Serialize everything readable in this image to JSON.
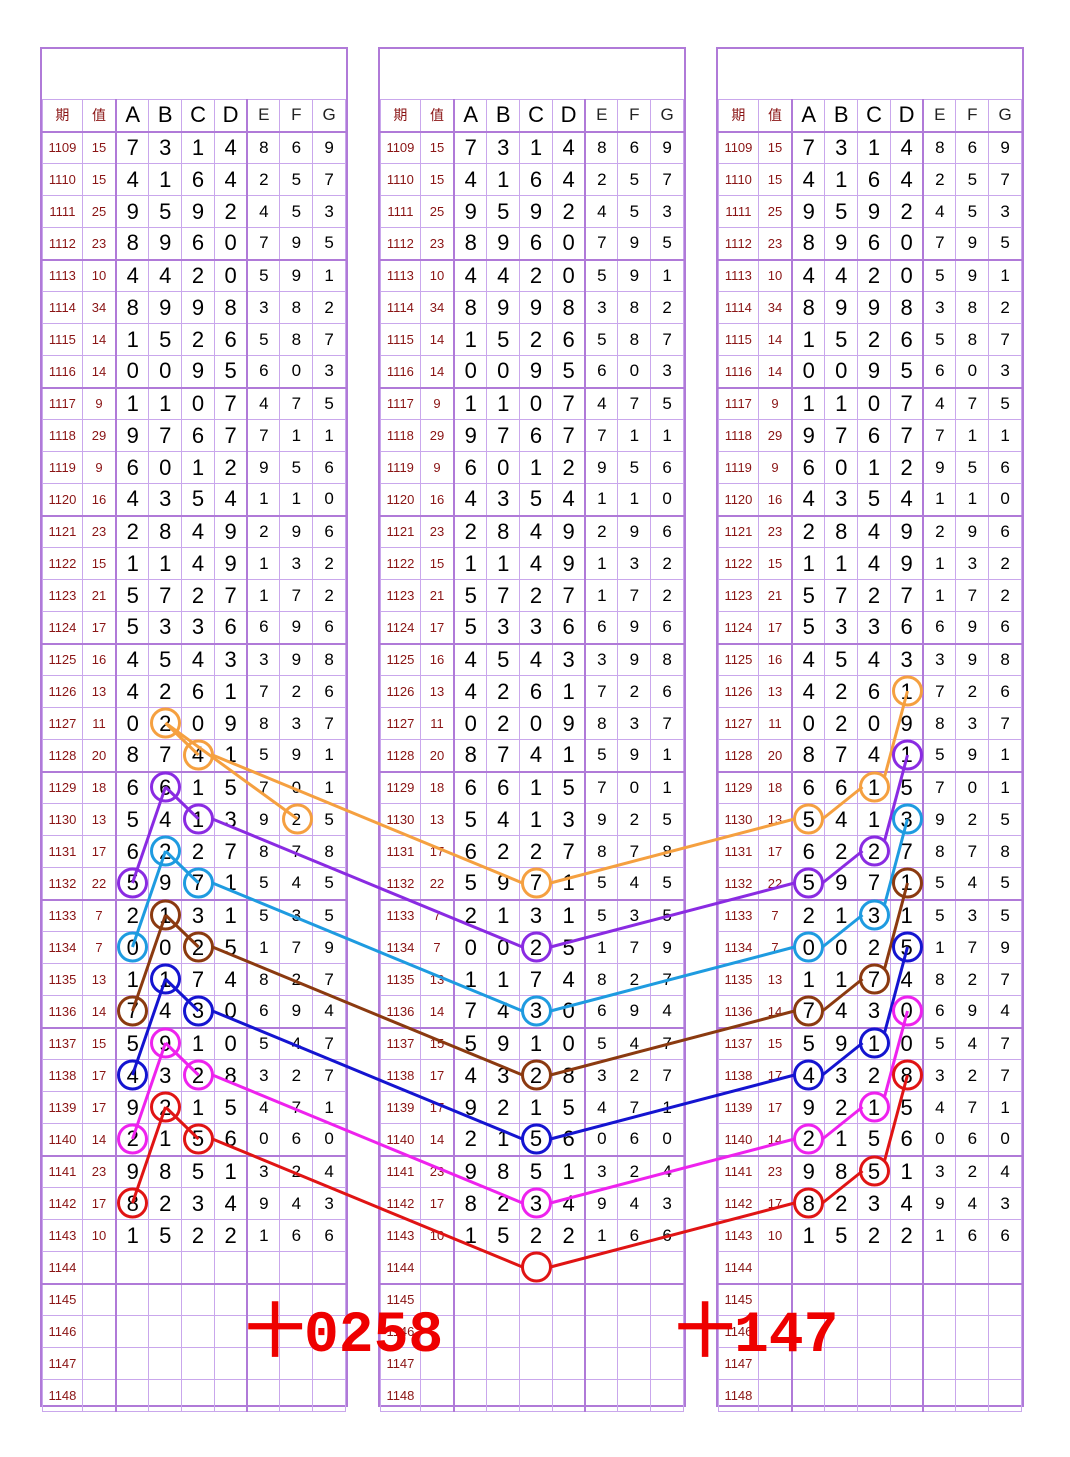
{
  "headers": {
    "issue": "期",
    "value": "值",
    "cols": [
      "A",
      "B",
      "C",
      "D",
      "E",
      "F",
      "G"
    ]
  },
  "rows": [
    {
      "issue": "1109",
      "value": "15",
      "digits": [
        "7",
        "3",
        "1",
        "4",
        "8",
        "6",
        "9"
      ]
    },
    {
      "issue": "1110",
      "value": "15",
      "digits": [
        "4",
        "1",
        "6",
        "4",
        "2",
        "5",
        "7"
      ]
    },
    {
      "issue": "1111",
      "value": "25",
      "digits": [
        "9",
        "5",
        "9",
        "2",
        "4",
        "5",
        "3"
      ]
    },
    {
      "issue": "1112",
      "value": "23",
      "digits": [
        "8",
        "9",
        "6",
        "0",
        "7",
        "9",
        "5"
      ]
    },
    {
      "issue": "1113",
      "value": "10",
      "digits": [
        "4",
        "4",
        "2",
        "0",
        "5",
        "9",
        "1"
      ]
    },
    {
      "issue": "1114",
      "value": "34",
      "digits": [
        "8",
        "9",
        "9",
        "8",
        "3",
        "8",
        "2"
      ]
    },
    {
      "issue": "1115",
      "value": "14",
      "digits": [
        "1",
        "5",
        "2",
        "6",
        "5",
        "8",
        "7"
      ]
    },
    {
      "issue": "1116",
      "value": "14",
      "digits": [
        "0",
        "0",
        "9",
        "5",
        "6",
        "0",
        "3"
      ]
    },
    {
      "issue": "1117",
      "value": "9",
      "digits": [
        "1",
        "1",
        "0",
        "7",
        "4",
        "7",
        "5"
      ]
    },
    {
      "issue": "1118",
      "value": "29",
      "digits": [
        "9",
        "7",
        "6",
        "7",
        "7",
        "1",
        "1"
      ]
    },
    {
      "issue": "1119",
      "value": "9",
      "digits": [
        "6",
        "0",
        "1",
        "2",
        "9",
        "5",
        "6"
      ]
    },
    {
      "issue": "1120",
      "value": "16",
      "digits": [
        "4",
        "3",
        "5",
        "4",
        "1",
        "1",
        "0"
      ]
    },
    {
      "issue": "1121",
      "value": "23",
      "digits": [
        "2",
        "8",
        "4",
        "9",
        "2",
        "9",
        "6"
      ]
    },
    {
      "issue": "1122",
      "value": "15",
      "digits": [
        "1",
        "1",
        "4",
        "9",
        "1",
        "3",
        "2"
      ]
    },
    {
      "issue": "1123",
      "value": "21",
      "digits": [
        "5",
        "7",
        "2",
        "7",
        "1",
        "7",
        "2"
      ]
    },
    {
      "issue": "1124",
      "value": "17",
      "digits": [
        "5",
        "3",
        "3",
        "6",
        "6",
        "9",
        "6"
      ]
    },
    {
      "issue": "1125",
      "value": "16",
      "digits": [
        "4",
        "5",
        "4",
        "3",
        "3",
        "9",
        "8"
      ]
    },
    {
      "issue": "1126",
      "value": "13",
      "digits": [
        "4",
        "2",
        "6",
        "1",
        "7",
        "2",
        "6"
      ]
    },
    {
      "issue": "1127",
      "value": "11",
      "digits": [
        "0",
        "2",
        "0",
        "9",
        "8",
        "3",
        "7"
      ]
    },
    {
      "issue": "1128",
      "value": "20",
      "digits": [
        "8",
        "7",
        "4",
        "1",
        "5",
        "9",
        "1"
      ]
    },
    {
      "issue": "1129",
      "value": "18",
      "digits": [
        "6",
        "6",
        "1",
        "5",
        "7",
        "0",
        "1"
      ]
    },
    {
      "issue": "1130",
      "value": "13",
      "digits": [
        "5",
        "4",
        "1",
        "3",
        "9",
        "2",
        "5"
      ]
    },
    {
      "issue": "1131",
      "value": "17",
      "digits": [
        "6",
        "2",
        "2",
        "7",
        "8",
        "7",
        "8"
      ]
    },
    {
      "issue": "1132",
      "value": "22",
      "digits": [
        "5",
        "9",
        "7",
        "1",
        "5",
        "4",
        "5"
      ]
    },
    {
      "issue": "1133",
      "value": "7",
      "digits": [
        "2",
        "1",
        "3",
        "1",
        "5",
        "3",
        "5"
      ]
    },
    {
      "issue": "1134",
      "value": "7",
      "digits": [
        "0",
        "0",
        "2",
        "5",
        "1",
        "7",
        "9"
      ]
    },
    {
      "issue": "1135",
      "value": "13",
      "digits": [
        "1",
        "1",
        "7",
        "4",
        "8",
        "2",
        "7"
      ]
    },
    {
      "issue": "1136",
      "value": "14",
      "digits": [
        "7",
        "4",
        "3",
        "0",
        "6",
        "9",
        "4"
      ]
    },
    {
      "issue": "1137",
      "value": "15",
      "digits": [
        "5",
        "9",
        "1",
        "0",
        "5",
        "4",
        "7"
      ]
    },
    {
      "issue": "1138",
      "value": "17",
      "digits": [
        "4",
        "3",
        "2",
        "8",
        "3",
        "2",
        "7"
      ]
    },
    {
      "issue": "1139",
      "value": "17",
      "digits": [
        "9",
        "2",
        "1",
        "5",
        "4",
        "7",
        "1"
      ]
    },
    {
      "issue": "1140",
      "value": "14",
      "digits": [
        "2",
        "1",
        "5",
        "6",
        "0",
        "6",
        "0"
      ]
    },
    {
      "issue": "1141",
      "value": "23",
      "digits": [
        "9",
        "8",
        "5",
        "1",
        "3",
        "2",
        "4"
      ]
    },
    {
      "issue": "1142",
      "value": "17",
      "digits": [
        "8",
        "2",
        "3",
        "4",
        "9",
        "4",
        "3"
      ]
    },
    {
      "issue": "1143",
      "value": "10",
      "digits": [
        "1",
        "5",
        "2",
        "2",
        "1",
        "6",
        "6"
      ]
    },
    {
      "issue": "1144",
      "value": "",
      "digits": [
        "",
        "",
        "",
        "",
        "",
        "",
        ""
      ]
    },
    {
      "issue": "1145",
      "value": "",
      "digits": [
        "",
        "",
        "",
        "",
        "",
        "",
        ""
      ]
    },
    {
      "issue": "1146",
      "value": "",
      "digits": [
        "",
        "",
        "",
        "",
        "",
        "",
        ""
      ]
    },
    {
      "issue": "1147",
      "value": "",
      "digits": [
        "",
        "",
        "",
        "",
        "",
        "",
        ""
      ]
    },
    {
      "issue": "1148",
      "value": "",
      "digits": [
        "",
        "",
        "",
        "",
        "",
        "",
        ""
      ]
    }
  ],
  "annotations": {
    "left": "十0258",
    "right": "十147"
  },
  "colors": {
    "orange": "#f5a040",
    "purple": "#8a2be2",
    "skyblue": "#1e9be0",
    "brown": "#8b3a10",
    "blue": "#1414d0",
    "magenta": "#ee22ee",
    "red": "#e01414",
    "grid": "#c9a7ec"
  },
  "trace_lines": [
    {
      "color": "orange",
      "left": [
        [
          5,
          21
        ],
        [
          1,
          18
        ],
        [
          2,
          19
        ]
      ],
      "center": [
        [
          2,
          23
        ]
      ],
      "right": [
        [
          0,
          21
        ],
        [
          2,
          20
        ],
        [
          3,
          17
        ]
      ]
    },
    {
      "color": "purple",
      "left": [
        [
          0,
          23
        ],
        [
          1,
          20
        ],
        [
          2,
          21
        ]
      ],
      "center": [
        [
          2,
          25
        ]
      ],
      "right": [
        [
          0,
          23
        ],
        [
          2,
          22
        ],
        [
          3,
          19
        ]
      ]
    },
    {
      "color": "skyblue",
      "left": [
        [
          0,
          25
        ],
        [
          1,
          22
        ],
        [
          2,
          23
        ]
      ],
      "center": [
        [
          2,
          27
        ]
      ],
      "right": [
        [
          0,
          25
        ],
        [
          2,
          24
        ],
        [
          3,
          21
        ]
      ]
    },
    {
      "color": "brown",
      "left": [
        [
          0,
          27
        ],
        [
          1,
          24
        ],
        [
          2,
          25
        ]
      ],
      "center": [
        [
          2,
          29
        ]
      ],
      "right": [
        [
          0,
          27
        ],
        [
          2,
          26
        ],
        [
          3,
          23
        ]
      ]
    },
    {
      "color": "blue",
      "left": [
        [
          0,
          29
        ],
        [
          1,
          26
        ],
        [
          2,
          27
        ]
      ],
      "center": [
        [
          2,
          31
        ]
      ],
      "right": [
        [
          0,
          29
        ],
        [
          2,
          28
        ],
        [
          3,
          25
        ]
      ]
    },
    {
      "color": "magenta",
      "left": [
        [
          0,
          31
        ],
        [
          1,
          28
        ],
        [
          2,
          29
        ]
      ],
      "center": [
        [
          2,
          33
        ]
      ],
      "right": [
        [
          0,
          31
        ],
        [
          2,
          30
        ],
        [
          3,
          27
        ]
      ]
    },
    {
      "color": "red",
      "left": [
        [
          0,
          33
        ],
        [
          1,
          30
        ],
        [
          2,
          31
        ]
      ],
      "center": [
        [
          2,
          35
        ]
      ],
      "right": [
        [
          0,
          33
        ],
        [
          2,
          32
        ],
        [
          3,
          29
        ]
      ]
    }
  ]
}
